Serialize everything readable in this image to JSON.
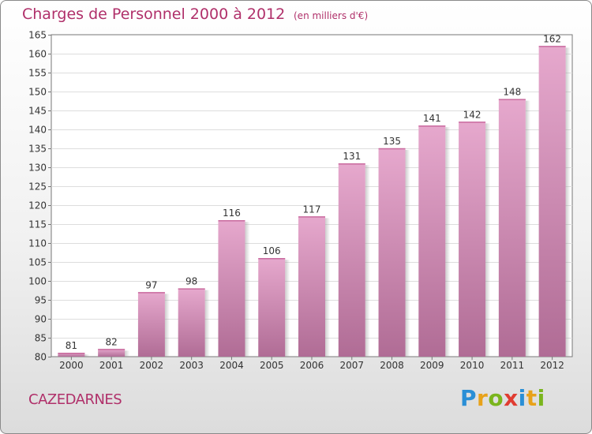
{
  "header": {
    "title": "Charges de Personnel 2000 à 2012",
    "unit_note": "(en milliers d'€)"
  },
  "footer": {
    "commune": "CAZEDARNES",
    "brand_letters": [
      {
        "char": "P",
        "color": "#2a8fd6"
      },
      {
        "char": "r",
        "color": "#e8a21a"
      },
      {
        "char": "o",
        "color": "#7ab51d"
      },
      {
        "char": "x",
        "color": "#e03c31"
      },
      {
        "char": "i",
        "color": "#2a8fd6"
      },
      {
        "char": "t",
        "color": "#e8a21a"
      },
      {
        "char": "i",
        "color": "#7ab51d"
      }
    ]
  },
  "colors": {
    "accent": "#b0306a",
    "bar_top": "#e6a8cd",
    "bar_bottom": "#b06c95"
  },
  "chart_data": {
    "type": "bar",
    "title": "Charges de Personnel 2000 à 2012",
    "subtitle": "(en milliers d'€)",
    "categories": [
      "2000",
      "2001",
      "2002",
      "2003",
      "2004",
      "2005",
      "2006",
      "2007",
      "2008",
      "2009",
      "2010",
      "2011",
      "2012"
    ],
    "values": [
      81,
      82,
      97,
      98,
      116,
      106,
      117,
      131,
      135,
      141,
      142,
      148,
      162
    ],
    "ylim": [
      80,
      165
    ],
    "yticks": [
      80,
      85,
      90,
      95,
      100,
      105,
      110,
      115,
      120,
      125,
      130,
      135,
      140,
      145,
      150,
      155,
      160,
      165
    ],
    "grid": true,
    "legend": "none"
  }
}
